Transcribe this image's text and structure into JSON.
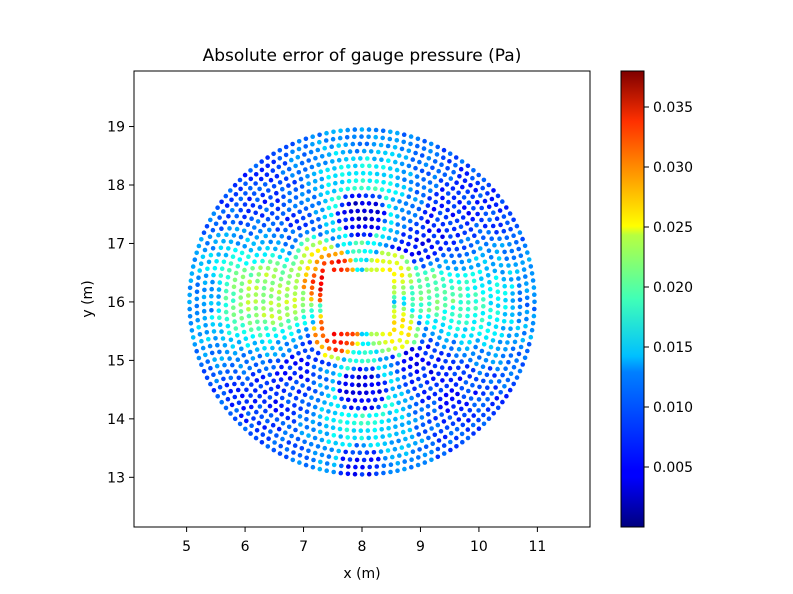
{
  "chart_data": {
    "type": "scatter",
    "title": "Absolute error of gauge pressure (Pa)",
    "xlabel": "x (m)",
    "ylabel": "y (m)",
    "xlim": [
      4.1,
      11.9
    ],
    "ylim": [
      12.15,
      19.95
    ],
    "xticks": [
      5,
      6,
      7,
      8,
      9,
      10,
      11
    ],
    "yticks": [
      13,
      14,
      15,
      16,
      17,
      18,
      19
    ],
    "grid": false,
    "colormap": "jet",
    "colorbar": {
      "range": [
        0.0,
        0.038
      ],
      "ticks": [
        0.005,
        0.01,
        0.015,
        0.02,
        0.025,
        0.03,
        0.035
      ],
      "tick_labels": [
        "0.005",
        "0.010",
        "0.015",
        "0.020",
        "0.025",
        "0.030",
        "0.035"
      ]
    },
    "description": "Circular cloud of points centered near (8.0, 16.0), radius about 2.95 m, with a square hole of side about 1.0 m around the center. Error is highest (about 0.038 Pa) at the upper-left corner of the square and low (under 0.005 Pa) along the diagonals of the square.",
    "domain": {
      "center": [
        8.0,
        16.0
      ],
      "outer_radius": 2.95,
      "inner_square_half_width": 0.55
    },
    "sample_points": [
      {
        "x": 7.4,
        "y": 16.5,
        "value": 0.038
      },
      {
        "x": 7.45,
        "y": 16.35,
        "value": 0.034
      },
      {
        "x": 7.55,
        "y": 15.45,
        "value": 0.034
      },
      {
        "x": 8.5,
        "y": 16.5,
        "value": 0.025
      },
      {
        "x": 8.55,
        "y": 15.5,
        "value": 0.026
      },
      {
        "x": 6.5,
        "y": 16.3,
        "value": 0.02
      },
      {
        "x": 7.2,
        "y": 16.7,
        "value": 0.022
      },
      {
        "x": 9.2,
        "y": 16.2,
        "value": 0.018
      },
      {
        "x": 8.0,
        "y": 14.5,
        "value": 0.002
      },
      {
        "x": 8.0,
        "y": 17.5,
        "value": 0.002
      },
      {
        "x": 8.05,
        "y": 18.9,
        "value": 0.01
      },
      {
        "x": 5.2,
        "y": 16.1,
        "value": 0.01
      },
      {
        "x": 10.9,
        "y": 16.0,
        "value": 0.009
      },
      {
        "x": 8.0,
        "y": 13.15,
        "value": 0.005
      }
    ]
  }
}
